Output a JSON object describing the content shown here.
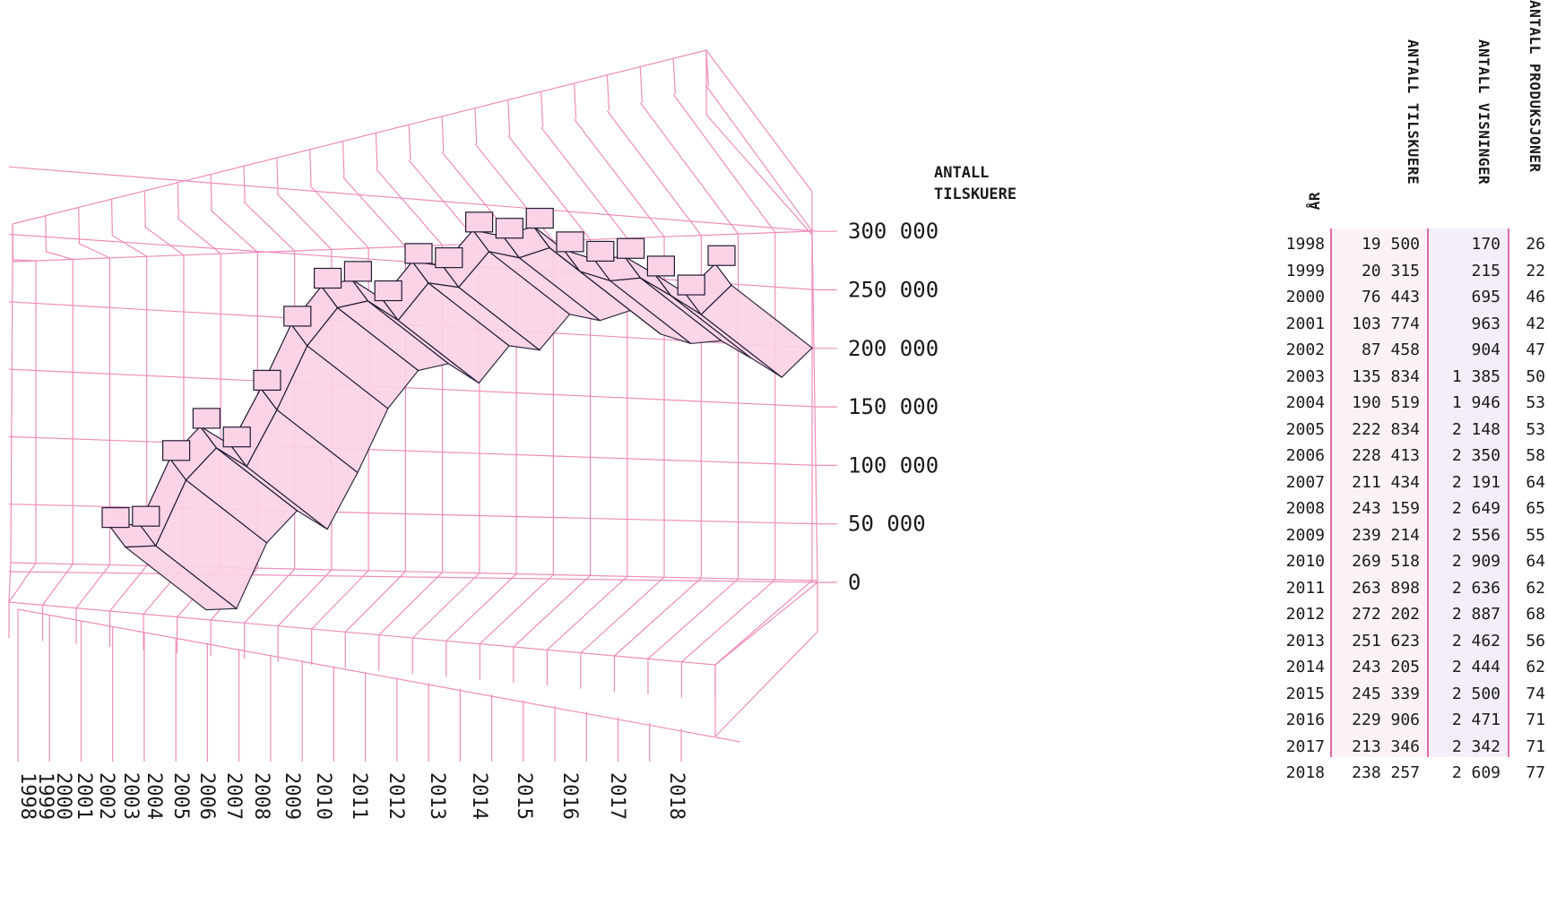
{
  "chart_data": {
    "type": "bar",
    "ylabel": "ANTALL TILSKUERE",
    "ylim": [
      0,
      300000
    ],
    "yticks": [
      "300 000",
      "250 000",
      "200 000",
      "150 000",
      "100 000",
      "50 000",
      "0"
    ],
    "categories": [
      "1998",
      "1999",
      "2000",
      "2001",
      "2002",
      "2003",
      "2004",
      "2005",
      "2006",
      "2007",
      "2008",
      "2009",
      "2010",
      "2011",
      "2012",
      "2013",
      "2014",
      "2015",
      "2016",
      "2017",
      "2018"
    ],
    "values": [
      19500,
      20315,
      76443,
      103774,
      87458,
      135834,
      190519,
      222834,
      228413,
      211434,
      243159,
      239214,
      269518,
      263898,
      272202,
      251623,
      243205,
      245339,
      229906,
      213346,
      238257
    ],
    "colors": {
      "grid": "#ee8cbb",
      "bar_fill": "#fbd3e6",
      "bar_stroke": "#1f1a33"
    }
  },
  "table": {
    "headers": {
      "year": "ÅR",
      "spectators": "ANTALL TILSKUERE",
      "showings": "ANTALL VISNINGER",
      "productions": "ANTALL PRODUKSJONER"
    },
    "rows": [
      {
        "year": "1998",
        "spectators": "19 500",
        "showings": "170",
        "productions": "26"
      },
      {
        "year": "1999",
        "spectators": "20 315",
        "showings": "215",
        "productions": "22"
      },
      {
        "year": "2000",
        "spectators": "76 443",
        "showings": "695",
        "productions": "46"
      },
      {
        "year": "2001",
        "spectators": "103 774",
        "showings": "963",
        "productions": "42"
      },
      {
        "year": "2002",
        "spectators": "87 458",
        "showings": "904",
        "productions": "47"
      },
      {
        "year": "2003",
        "spectators": "135 834",
        "showings": "1 385",
        "productions": "50"
      },
      {
        "year": "2004",
        "spectators": "190 519",
        "showings": "1 946",
        "productions": "53"
      },
      {
        "year": "2005",
        "spectators": "222 834",
        "showings": "2 148",
        "productions": "53"
      },
      {
        "year": "2006",
        "spectators": "228 413",
        "showings": "2 350",
        "productions": "58"
      },
      {
        "year": "2007",
        "spectators": "211 434",
        "showings": "2 191",
        "productions": "64"
      },
      {
        "year": "2008",
        "spectators": "243 159",
        "showings": "2 649",
        "productions": "65"
      },
      {
        "year": "2009",
        "spectators": "239 214",
        "showings": "2 556",
        "productions": "55"
      },
      {
        "year": "2010",
        "spectators": "269 518",
        "showings": "2 909",
        "productions": "64"
      },
      {
        "year": "2011",
        "spectators": "263 898",
        "showings": "2 636",
        "productions": "62"
      },
      {
        "year": "2012",
        "spectators": "272 202",
        "showings": "2 887",
        "productions": "68"
      },
      {
        "year": "2013",
        "spectators": "251 623",
        "showings": "2 462",
        "productions": "56"
      },
      {
        "year": "2014",
        "spectators": "243 205",
        "showings": "2 444",
        "productions": "62"
      },
      {
        "year": "2015",
        "spectators": "245 339",
        "showings": "2 500",
        "productions": "74"
      },
      {
        "year": "2016",
        "spectators": "229 906",
        "showings": "2 471",
        "productions": "71"
      },
      {
        "year": "2017",
        "spectators": "213 346",
        "showings": "2 342",
        "productions": "71"
      },
      {
        "year": "2018",
        "spectators": "238 257",
        "showings": "2 609",
        "productions": "77"
      }
    ]
  }
}
